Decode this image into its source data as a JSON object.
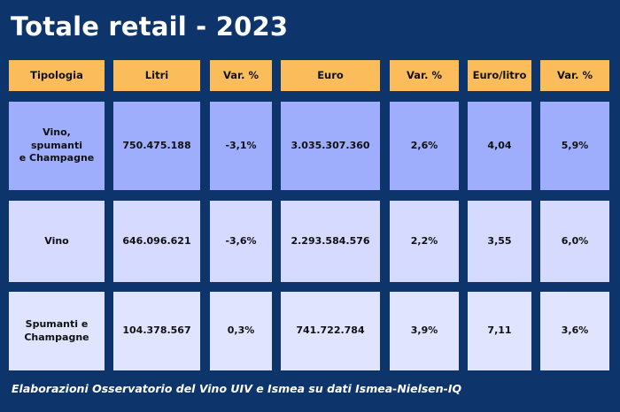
{
  "title": "Totale retail - 2023",
  "footer": "Elaborazioni Osservatorio del Vino UIV e Ismea su dati Ismea-Nielsen-IQ",
  "colors": {
    "background": "#0d356b",
    "header": "#fbbd5b",
    "row_highlight": "#9fadfd",
    "row_light": "#d5dafe",
    "row_lighter": "#e0e4fe"
  },
  "chart_data": {
    "type": "table",
    "title": "Totale retail - 2023",
    "columns": [
      "Tipologia",
      "Litri",
      "Var. %",
      "Euro",
      "Var. %",
      "Euro/litro",
      "Var. %"
    ],
    "rows": [
      [
        "Vino,\nspumanti\ne Champagne",
        "750.475.188",
        "-3,1%",
        "3.035.307.360",
        "2,6%",
        "4,04",
        "5,9%"
      ],
      [
        "Vino",
        "646.096.621",
        "-3,6%",
        "2.293.584.576",
        "2,2%",
        "3,55",
        "6,0%"
      ],
      [
        "Spumanti e\nChampagne",
        "104.378.567",
        "0,3%",
        "741.722.784",
        "3,9%",
        "7,11",
        "3,6%"
      ]
    ]
  }
}
